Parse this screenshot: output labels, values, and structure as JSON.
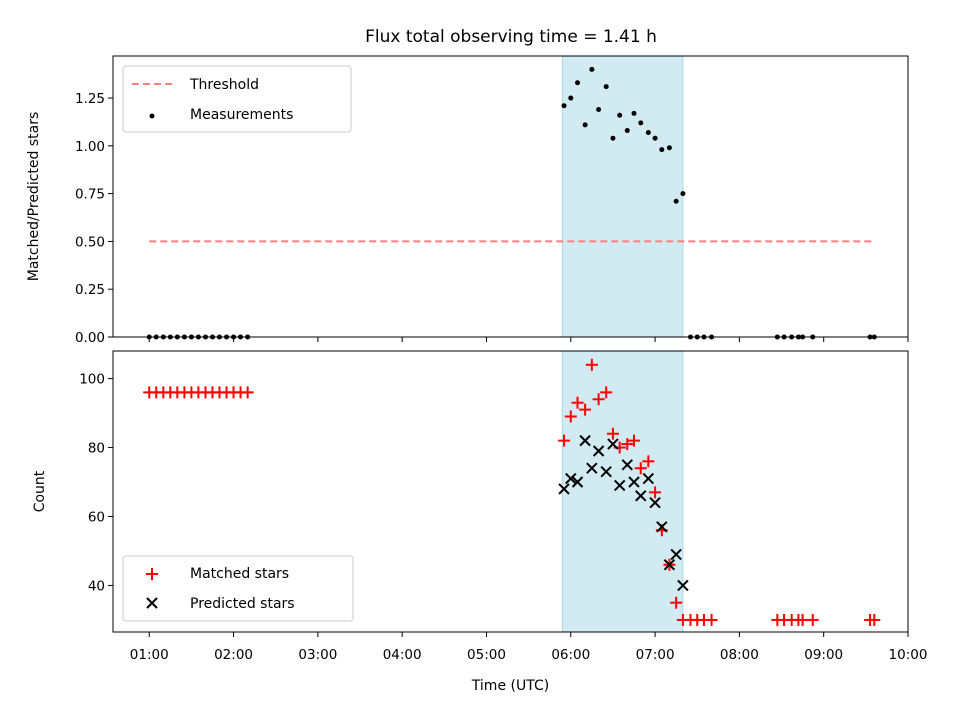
{
  "chart_data": [
    {
      "type": "scatter",
      "title": "Flux total observing time = 1.41 h",
      "ylabel": "Matched/Predicted stars",
      "ylim": [
        0,
        1.47
      ],
      "yticks": [
        "0.00",
        "0.25",
        "0.50",
        "0.75",
        "1.00",
        "1.25"
      ],
      "ytick_values": [
        0,
        0.25,
        0.5,
        0.75,
        1.0,
        1.25
      ],
      "xlim": [
        0.57,
        10.0
      ],
      "shaded_region": {
        "x0": 5.9,
        "x1": 7.33,
        "color": "#add8e6"
      },
      "legend": {
        "placement": "upper left",
        "entries": [
          "Threshold",
          "Measurements"
        ]
      },
      "series": [
        {
          "name": "Threshold",
          "style": "dashed-line",
          "color": "#ff7f7f",
          "x": [
            1.0,
            9.6
          ],
          "y": [
            0.5,
            0.5
          ]
        },
        {
          "name": "Measurements",
          "style": "dot",
          "color": "#000000",
          "x": [
            1.0,
            1.083,
            1.167,
            1.25,
            1.333,
            1.417,
            1.5,
            1.583,
            1.667,
            1.75,
            1.833,
            1.917,
            2.0,
            2.083,
            2.167,
            5.92,
            6.0,
            6.08,
            6.17,
            6.25,
            6.33,
            6.42,
            6.5,
            6.58,
            6.67,
            6.75,
            6.83,
            6.92,
            7.0,
            7.08,
            7.17,
            7.25,
            7.33,
            7.42,
            7.5,
            7.58,
            7.67,
            8.45,
            8.53,
            8.62,
            8.7,
            8.75,
            8.87,
            9.55,
            9.6
          ],
          "y": [
            0,
            0,
            0,
            0,
            0,
            0,
            0,
            0,
            0,
            0,
            0,
            0,
            0,
            0,
            0,
            1.21,
            1.25,
            1.33,
            1.11,
            1.4,
            1.19,
            1.31,
            1.04,
            1.16,
            1.08,
            1.17,
            1.12,
            1.07,
            1.04,
            0.98,
            0.99,
            0.71,
            0.75,
            0,
            0,
            0,
            0,
            0,
            0,
            0,
            0,
            0,
            0,
            0,
            0
          ]
        }
      ]
    },
    {
      "type": "scatter",
      "ylabel": "Count",
      "xlabel": "Time (UTC)",
      "ylim": [
        26.5,
        108
      ],
      "yticks": [
        "40",
        "60",
        "80",
        "100"
      ],
      "ytick_values": [
        40,
        60,
        80,
        100
      ],
      "xlim": [
        0.57,
        10.0
      ],
      "xticks": [
        "01:00",
        "02:00",
        "03:00",
        "04:00",
        "05:00",
        "06:00",
        "07:00",
        "08:00",
        "09:00",
        "10:00"
      ],
      "xtick_values": [
        1,
        2,
        3,
        4,
        5,
        6,
        7,
        8,
        9,
        10
      ],
      "shaded_region": {
        "x0": 5.9,
        "x1": 7.33,
        "color": "#add8e6"
      },
      "legend": {
        "placement": "lower left",
        "entries": [
          "Matched stars",
          "Predicted stars"
        ]
      },
      "series": [
        {
          "name": "Matched stars",
          "style": "plus",
          "color": "#ff0000",
          "x": [
            1.0,
            1.083,
            1.167,
            1.25,
            1.333,
            1.417,
            1.5,
            1.583,
            1.667,
            1.75,
            1.833,
            1.917,
            2.0,
            2.083,
            2.167,
            5.92,
            6.0,
            6.08,
            6.17,
            6.25,
            6.33,
            6.42,
            6.5,
            6.58,
            6.67,
            6.75,
            6.83,
            6.92,
            7.0,
            7.08,
            7.17,
            7.25,
            7.33,
            7.42,
            7.5,
            7.58,
            7.67,
            8.45,
            8.53,
            8.62,
            8.7,
            8.75,
            8.87,
            9.55,
            9.6
          ],
          "y": [
            96,
            96,
            96,
            96,
            96,
            96,
            96,
            96,
            96,
            96,
            96,
            96,
            96,
            96,
            96,
            82,
            89,
            93,
            91,
            104,
            94,
            96,
            84,
            80,
            81,
            82,
            74,
            76,
            67,
            56,
            46,
            35,
            30,
            30,
            30,
            30,
            30,
            30,
            30,
            30,
            30,
            30,
            30,
            30,
            30
          ]
        },
        {
          "name": "Predicted stars",
          "style": "x",
          "color": "#000000",
          "x": [
            5.92,
            6.0,
            6.08,
            6.17,
            6.25,
            6.33,
            6.42,
            6.5,
            6.58,
            6.67,
            6.75,
            6.83,
            6.92,
            7.0,
            7.08,
            7.17,
            7.25,
            7.33
          ],
          "y": [
            68,
            71,
            70,
            82,
            74,
            79,
            73,
            81,
            69,
            75,
            70,
            66,
            71,
            64,
            57,
            46,
            49,
            40
          ]
        }
      ]
    }
  ]
}
